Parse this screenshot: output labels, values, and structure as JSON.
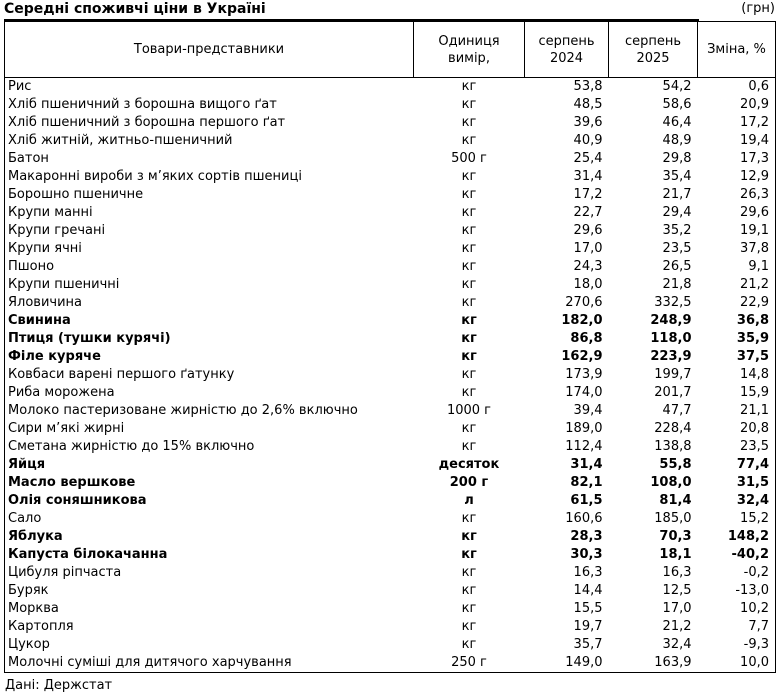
{
  "accent_colors": {
    "text": "#000000",
    "background": "#ffffff",
    "border": "#000000"
  },
  "chart_data": {
    "type": "table",
    "title": "Середні споживчі ціни в Україні",
    "unit_note": "(грн)",
    "source": "Дані: Держстат",
    "columns": [
      {
        "key": "name",
        "lines": [
          "Товари-представники"
        ]
      },
      {
        "key": "unit",
        "lines": [
          "Одиниця",
          "вимір,"
        ]
      },
      {
        "key": "aug2024",
        "lines": [
          "серпень",
          "2024"
        ]
      },
      {
        "key": "aug2025",
        "lines": [
          "серпень",
          "2025"
        ]
      },
      {
        "key": "change",
        "lines": [
          "Зміна, %"
        ]
      }
    ],
    "rows": [
      {
        "name": "Рис",
        "unit": "кг",
        "aug2024": "53,8",
        "aug2025": "54,2",
        "change": "0,6",
        "bold": false
      },
      {
        "name": "Хліб пшеничний з борошна вищого ґат",
        "unit": "кг",
        "aug2024": "48,5",
        "aug2025": "58,6",
        "change": "20,9",
        "bold": false
      },
      {
        "name": "Хліб пшеничний з борошна першого ґат",
        "unit": "кг",
        "aug2024": "39,6",
        "aug2025": "46,4",
        "change": "17,2",
        "bold": false
      },
      {
        "name": "Хліб житній, житньо-пшеничний",
        "unit": "кг",
        "aug2024": "40,9",
        "aug2025": "48,9",
        "change": "19,4",
        "bold": false
      },
      {
        "name": "Батон",
        "unit": "500 г",
        "aug2024": "25,4",
        "aug2025": "29,8",
        "change": "17,3",
        "bold": false
      },
      {
        "name": "Макаронні вироби з м’яких сортів пшениці",
        "unit": "кг",
        "aug2024": "31,4",
        "aug2025": "35,4",
        "change": "12,9",
        "bold": false
      },
      {
        "name": "Борошно пшеничне",
        "unit": "кг",
        "aug2024": "17,2",
        "aug2025": "21,7",
        "change": "26,3",
        "bold": false
      },
      {
        "name": "Крупи манні",
        "unit": "кг",
        "aug2024": "22,7",
        "aug2025": "29,4",
        "change": "29,6",
        "bold": false
      },
      {
        "name": "Крупи гречані",
        "unit": "кг",
        "aug2024": "29,6",
        "aug2025": "35,2",
        "change": "19,1",
        "bold": false
      },
      {
        "name": "Крупи ячні",
        "unit": "кг",
        "aug2024": "17,0",
        "aug2025": "23,5",
        "change": "37,8",
        "bold": false
      },
      {
        "name": "Пшоно",
        "unit": "кг",
        "aug2024": "24,3",
        "aug2025": "26,5",
        "change": "9,1",
        "bold": false
      },
      {
        "name": "Крупи пшеничні",
        "unit": "кг",
        "aug2024": "18,0",
        "aug2025": "21,8",
        "change": "21,2",
        "bold": false
      },
      {
        "name": "Яловичина",
        "unit": "кг",
        "aug2024": "270,6",
        "aug2025": "332,5",
        "change": "22,9",
        "bold": false
      },
      {
        "name": "Свинина",
        "unit": "кг",
        "aug2024": "182,0",
        "aug2025": "248,9",
        "change": "36,8",
        "bold": true
      },
      {
        "name": "Птиця (тушки курячі)",
        "unit": "кг",
        "aug2024": "86,8",
        "aug2025": "118,0",
        "change": "35,9",
        "bold": true
      },
      {
        "name": "Філе куряче",
        "unit": "кг",
        "aug2024": "162,9",
        "aug2025": "223,9",
        "change": "37,5",
        "bold": true
      },
      {
        "name": "Ковбаси варені першого ґатунку",
        "unit": "кг",
        "aug2024": "173,9",
        "aug2025": "199,7",
        "change": "14,8",
        "bold": false
      },
      {
        "name": "Риба морожена",
        "unit": "кг",
        "aug2024": "174,0",
        "aug2025": "201,7",
        "change": "15,9",
        "bold": false
      },
      {
        "name": "Молоко пастеризоване жирністю до 2,6% включно",
        "unit": "1000 г",
        "aug2024": "39,4",
        "aug2025": "47,7",
        "change": "21,1",
        "bold": false
      },
      {
        "name": "Сири м’які жирні",
        "unit": "кг",
        "aug2024": "189,0",
        "aug2025": "228,4",
        "change": "20,8",
        "bold": false
      },
      {
        "name": "Сметана жирністю до 15% включно",
        "unit": "кг",
        "aug2024": "112,4",
        "aug2025": "138,8",
        "change": "23,5",
        "bold": false
      },
      {
        "name": "Яйця",
        "unit": "десяток",
        "aug2024": "31,4",
        "aug2025": "55,8",
        "change": "77,4",
        "bold": true
      },
      {
        "name": "Масло вершкове",
        "unit": "200 г",
        "aug2024": "82,1",
        "aug2025": "108,0",
        "change": "31,5",
        "bold": true
      },
      {
        "name": "Олія соняшникова",
        "unit": "л",
        "aug2024": "61,5",
        "aug2025": "81,4",
        "change": "32,4",
        "bold": true
      },
      {
        "name": "Сало",
        "unit": "кг",
        "aug2024": "160,6",
        "aug2025": "185,0",
        "change": "15,2",
        "bold": false
      },
      {
        "name": "Яблука",
        "unit": "кг",
        "aug2024": "28,3",
        "aug2025": "70,3",
        "change": "148,2",
        "bold": true
      },
      {
        "name": "Капуста білокачанна",
        "unit": "кг",
        "aug2024": "30,3",
        "aug2025": "18,1",
        "change": "-40,2",
        "bold": true
      },
      {
        "name": "Цибуля ріпчаста",
        "unit": "кг",
        "aug2024": "16,3",
        "aug2025": "16,3",
        "change": "-0,2",
        "bold": false
      },
      {
        "name": "Буряк",
        "unit": "кг",
        "aug2024": "14,4",
        "aug2025": "12,5",
        "change": "-13,0",
        "bold": false
      },
      {
        "name": "Морква",
        "unit": "кг",
        "aug2024": "15,5",
        "aug2025": "17,0",
        "change": "10,2",
        "bold": false
      },
      {
        "name": "Картопля",
        "unit": "кг",
        "aug2024": "19,7",
        "aug2025": "21,2",
        "change": "7,7",
        "bold": false
      },
      {
        "name": "Цукор",
        "unit": "кг",
        "aug2024": "35,7",
        "aug2025": "32,4",
        "change": "-9,3",
        "bold": false
      },
      {
        "name": "Молочні суміші для дитячого харчування",
        "unit": "250 г",
        "aug2024": "149,0",
        "aug2025": "163,9",
        "change": "10,0",
        "bold": false
      }
    ]
  }
}
